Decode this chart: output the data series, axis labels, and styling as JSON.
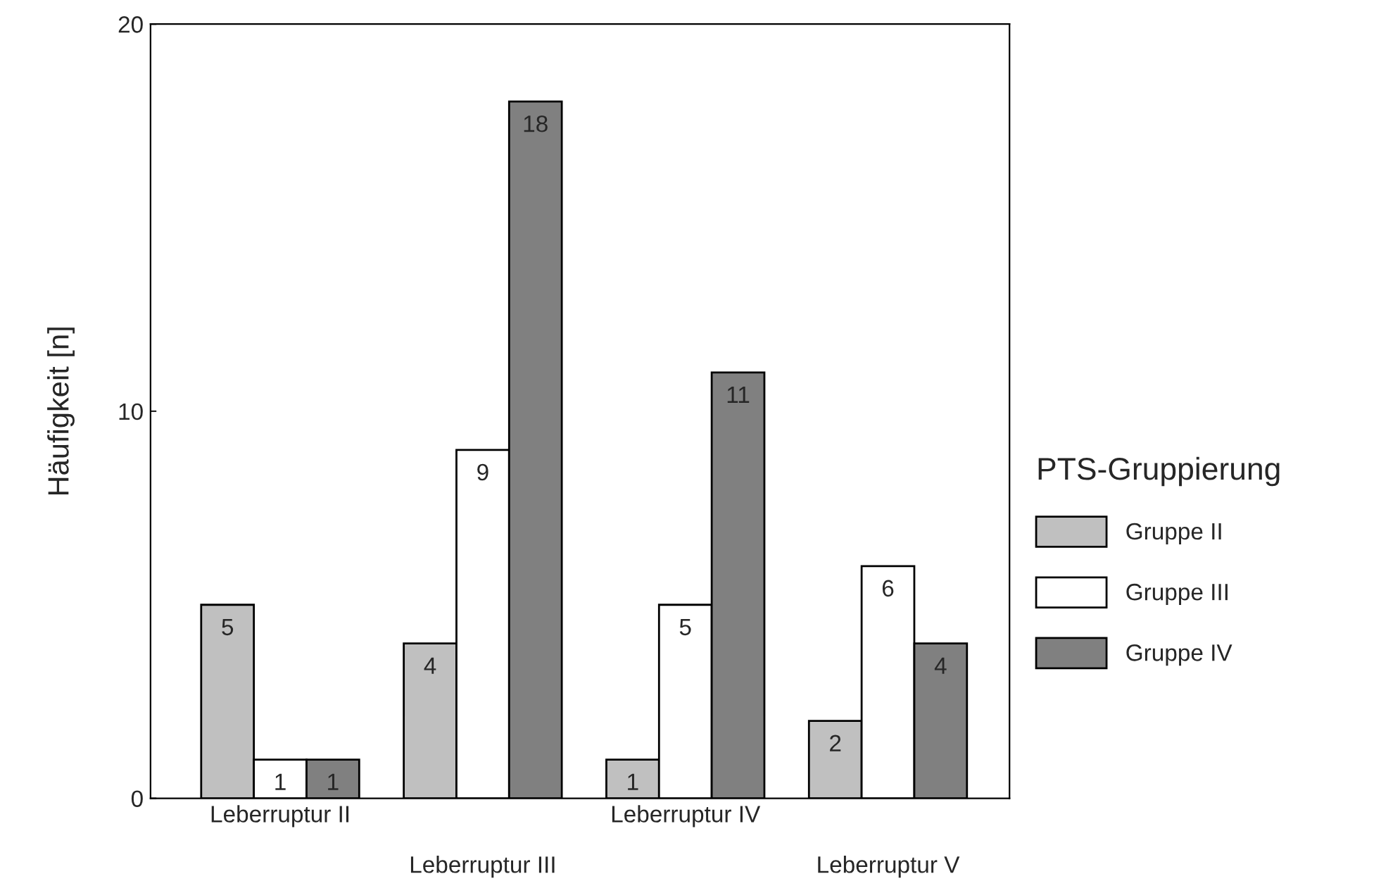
{
  "chart_data": {
    "type": "bar",
    "ylabel": "Häufigkeit [n]",
    "legend_title": "PTS-Gruppierung",
    "categories": [
      "Leberruptur II",
      "Leberruptur III",
      "Leberruptur IV",
      "Leberruptur V"
    ],
    "series": [
      {
        "name": "Gruppe II",
        "color": "#c0c0c0",
        "values": [
          5,
          4,
          1,
          2
        ]
      },
      {
        "name": "Gruppe III",
        "color": "#ffffff",
        "values": [
          1,
          9,
          5,
          6
        ]
      },
      {
        "name": "Gruppe IV",
        "color": "#808080",
        "values": [
          1,
          18,
          11,
          4
        ]
      }
    ],
    "ylim": [
      0,
      20
    ],
    "yticks": [
      0,
      10,
      20
    ],
    "data_labels": true,
    "grid": false,
    "legend": "right"
  }
}
